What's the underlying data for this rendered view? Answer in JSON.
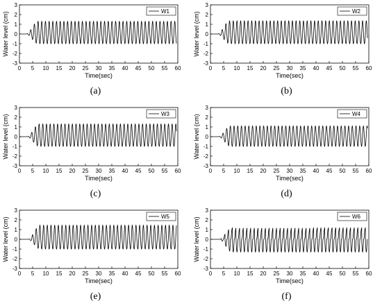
{
  "chart_data": [
    {
      "type": "line",
      "caption": "(a)",
      "legend": "W1",
      "legend_position": "top-right",
      "xlabel": "Time(sec)",
      "ylabel": "Water level (cm)",
      "xlim": [
        0,
        60
      ],
      "ylim": [
        -3,
        3
      ],
      "xticks": [
        0,
        5,
        10,
        15,
        20,
        25,
        30,
        35,
        40,
        45,
        50,
        55,
        60
      ],
      "yticks": [
        -3,
        -2,
        -1,
        0,
        1,
        2,
        3
      ],
      "grid": false,
      "wave": {
        "period": 1.4,
        "onset": 2.5,
        "steady_from": 7,
        "amplitude_crest": 1.3,
        "amplitude_trough": -1.0,
        "end": 59.5
      }
    },
    {
      "type": "line",
      "caption": "(b)",
      "legend": "W2",
      "legend_position": "top-right",
      "xlabel": "Time(sec)",
      "ylabel": "Water level (cm)",
      "xlim": [
        0,
        60
      ],
      "ylim": [
        -3,
        3
      ],
      "xticks": [
        0,
        5,
        10,
        15,
        20,
        25,
        30,
        35,
        40,
        45,
        50,
        55,
        60
      ],
      "yticks": [
        -3,
        -2,
        -1,
        0,
        1,
        2,
        3
      ],
      "grid": false,
      "wave": {
        "period": 1.4,
        "onset": 2.7,
        "steady_from": 7.2,
        "amplitude_crest": 1.35,
        "amplitude_trough": -1.0,
        "end": 59.5
      }
    },
    {
      "type": "line",
      "caption": "(c)",
      "legend": "W3",
      "legend_position": "top-right",
      "xlabel": "Time(sec)",
      "ylabel": "Water level (cm)",
      "xlim": [
        0,
        60
      ],
      "ylim": [
        -3,
        3
      ],
      "xticks": [
        0,
        5,
        10,
        15,
        20,
        25,
        30,
        35,
        40,
        45,
        50,
        55,
        60
      ],
      "yticks": [
        -3,
        -2,
        -1,
        0,
        1,
        2,
        3
      ],
      "grid": false,
      "wave": {
        "period": 1.4,
        "onset": 2.9,
        "steady_from": 7.4,
        "amplitude_crest": 1.3,
        "amplitude_trough": -1.0,
        "end": 59.5
      }
    },
    {
      "type": "line",
      "caption": "(d)",
      "legend": "W4",
      "legend_position": "top-right",
      "xlabel": "Time(sec)",
      "ylabel": "Water level (cm)",
      "xlim": [
        0,
        60
      ],
      "ylim": [
        -3,
        3
      ],
      "xticks": [
        0,
        5,
        10,
        15,
        20,
        25,
        30,
        35,
        40,
        45,
        50,
        55,
        60
      ],
      "yticks": [
        -3,
        -2,
        -1,
        0,
        1,
        2,
        3
      ],
      "grid": false,
      "wave": {
        "period": 1.4,
        "onset": 3.0,
        "steady_from": 7.6,
        "amplitude_crest": 1.1,
        "amplitude_trough": -1.0,
        "end": 59.5
      }
    },
    {
      "type": "line",
      "caption": "(e)",
      "legend": "W5",
      "legend_position": "top-right",
      "xlabel": "Time(sec)",
      "ylabel": "Water level (cm)",
      "xlim": [
        0,
        60
      ],
      "ylim": [
        -3,
        3
      ],
      "xticks": [
        0,
        5,
        10,
        15,
        20,
        25,
        30,
        35,
        40,
        45,
        50,
        55,
        60
      ],
      "yticks": [
        -3,
        -2,
        -1,
        0,
        1,
        2,
        3
      ],
      "grid": false,
      "wave": {
        "period": 1.4,
        "onset": 3.2,
        "steady_from": 7.8,
        "amplitude_crest": 1.45,
        "amplitude_trough": -1.0,
        "end": 59.5
      }
    },
    {
      "type": "line",
      "caption": "(f)",
      "legend": "W6",
      "legend_position": "top-right",
      "xlabel": "Time(sec)",
      "ylabel": "Water level (cm)",
      "xlim": [
        0,
        60
      ],
      "ylim": [
        -3,
        3
      ],
      "xticks": [
        0,
        5,
        10,
        15,
        20,
        25,
        30,
        35,
        40,
        45,
        50,
        55,
        60
      ],
      "yticks": [
        -3,
        -2,
        -1,
        0,
        1,
        2,
        3
      ],
      "grid": false,
      "wave": {
        "period": 1.4,
        "onset": 3.4,
        "steady_from": 8.0,
        "amplitude_crest": 1.5,
        "amplitude_trough": -1.3,
        "end": 59.5,
        "breaking": true
      }
    }
  ]
}
